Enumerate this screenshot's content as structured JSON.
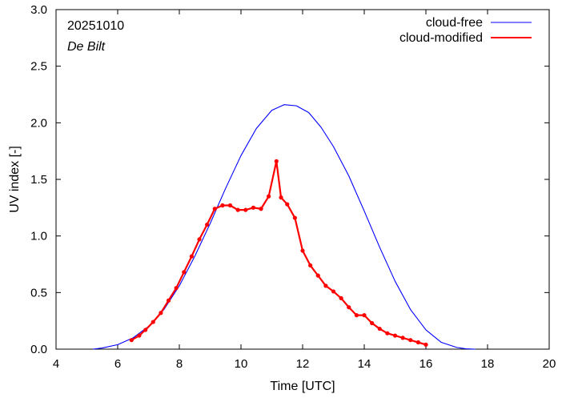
{
  "chart_data": {
    "type": "line",
    "title": "",
    "xlabel": "Time  [UTC]",
    "ylabel": "UV index  [-]",
    "xlim": [
      4,
      20
    ],
    "ylim": [
      0.0,
      3.0
    ],
    "xticks": [
      4,
      6,
      8,
      10,
      12,
      14,
      16,
      18,
      20
    ],
    "xtick_labels": [
      "4",
      "6",
      "8",
      "10",
      "12",
      "14",
      "16",
      "18",
      "20"
    ],
    "yticks": [
      0.0,
      0.5,
      1.0,
      1.5,
      2.0,
      2.5,
      3.0
    ],
    "ytick_labels": [
      "0.0",
      "0.5",
      "1.0",
      "1.5",
      "2.0",
      "2.5",
      "3.0"
    ],
    "grid": false,
    "legend_position": "top-right",
    "annotations": {
      "date": "20251010",
      "station": "De Bilt"
    },
    "series": [
      {
        "name": "cloud-free",
        "color": "#0000ff",
        "markers": false,
        "x": [
          5.2,
          5.5,
          6.0,
          6.5,
          7.0,
          7.5,
          8.0,
          8.5,
          9.0,
          9.5,
          10.0,
          10.5,
          11.0,
          11.4,
          11.8,
          12.2,
          12.6,
          13.0,
          13.5,
          14.0,
          14.5,
          15.0,
          15.5,
          16.0,
          16.5,
          17.0,
          17.3,
          17.6
        ],
        "y": [
          0.0,
          0.01,
          0.04,
          0.1,
          0.2,
          0.35,
          0.56,
          0.82,
          1.11,
          1.42,
          1.71,
          1.95,
          2.11,
          2.16,
          2.15,
          2.09,
          1.96,
          1.79,
          1.53,
          1.22,
          0.9,
          0.6,
          0.35,
          0.17,
          0.06,
          0.015,
          0.003,
          0.0
        ]
      },
      {
        "name": "cloud-modified",
        "color": "#ff0000",
        "markers": true,
        "x": [
          6.45,
          6.7,
          6.9,
          7.15,
          7.4,
          7.65,
          7.9,
          8.15,
          8.4,
          8.65,
          8.9,
          9.15,
          9.4,
          9.65,
          9.9,
          10.15,
          10.4,
          10.65,
          10.9,
          11.15,
          11.3,
          11.5,
          11.75,
          12.0,
          12.25,
          12.5,
          12.75,
          13.0,
          13.25,
          13.5,
          13.75,
          14.0,
          14.25,
          14.5,
          14.75,
          15.0,
          15.25,
          15.5,
          15.75,
          16.0
        ],
        "y": [
          0.08,
          0.12,
          0.17,
          0.24,
          0.32,
          0.43,
          0.54,
          0.68,
          0.82,
          0.97,
          1.1,
          1.24,
          1.27,
          1.27,
          1.23,
          1.23,
          1.25,
          1.24,
          1.35,
          1.66,
          1.34,
          1.28,
          1.16,
          0.87,
          0.74,
          0.65,
          0.56,
          0.51,
          0.45,
          0.37,
          0.3,
          0.3,
          0.23,
          0.18,
          0.14,
          0.12,
          0.1,
          0.08,
          0.06,
          0.04
        ]
      }
    ]
  }
}
